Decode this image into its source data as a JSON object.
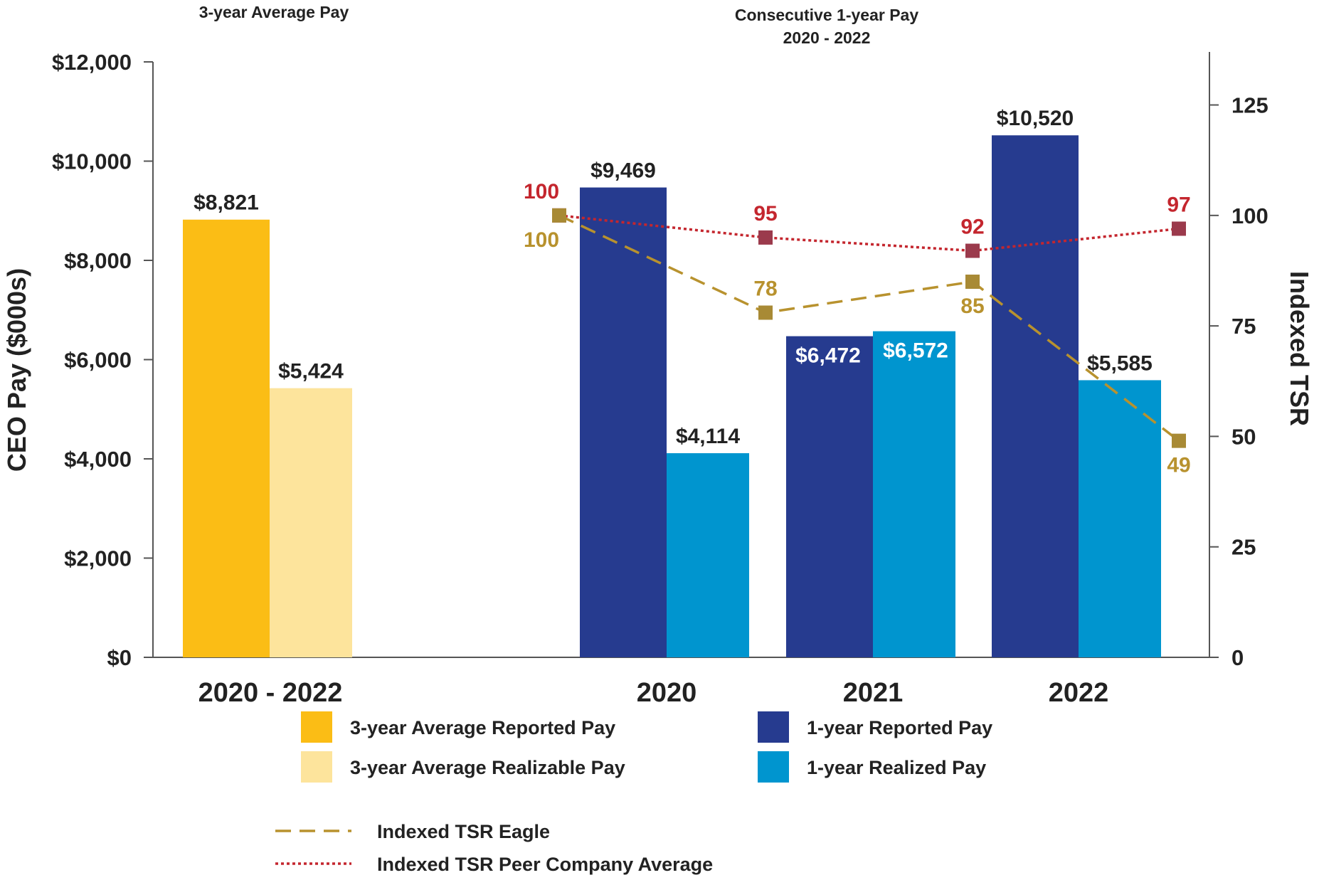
{
  "chart_data": {
    "type": "bar",
    "headings": {
      "left": "3-year Average Pay",
      "right_line1": "Consecutive 1-year Pay",
      "right_line2": "2020 - 2022"
    },
    "ylabel": "CEO Pay ($000s)",
    "y2label": "Indexed TSR",
    "ylim": [
      0,
      12000
    ],
    "y_ticks": [
      0,
      2000,
      4000,
      6000,
      8000,
      10000,
      12000
    ],
    "y_tick_labels": [
      "$0",
      "$2,000",
      "$4,000",
      "$6,000",
      "$8,000",
      "$10,000",
      "$12,000"
    ],
    "y2lim": [
      0,
      137
    ],
    "y2_ticks": [
      0,
      25,
      50,
      75,
      100,
      125
    ],
    "y2_tick_labels": [
      "0",
      "25",
      "50",
      "75",
      "100",
      "125"
    ],
    "groups": [
      {
        "category": "2020 - 2022",
        "bars": [
          {
            "series": "3-year Average Reported Pay",
            "value": 8821,
            "label": "$8,821"
          },
          {
            "series": "3-year Average Realizable Pay",
            "value": 5424,
            "label": "$5,424"
          }
        ]
      },
      {
        "category": "2020",
        "bars": [
          {
            "series": "1-year Reported Pay",
            "value": 9469,
            "label": "$9,469"
          },
          {
            "series": "1-year Realized Pay",
            "value": 4114,
            "label": "$4,114"
          }
        ]
      },
      {
        "category": "2021",
        "bars": [
          {
            "series": "1-year Reported Pay",
            "value": 6472,
            "label": "$6,472"
          },
          {
            "series": "1-year Realized Pay",
            "value": 6572,
            "label": "$6,572"
          }
        ]
      },
      {
        "category": "2022",
        "bars": [
          {
            "series": "1-year Reported Pay",
            "value": 10520,
            "label": "$10,520"
          },
          {
            "series": "1-year Realized Pay",
            "value": 5585,
            "label": "$5,585"
          }
        ]
      }
    ],
    "lines": [
      {
        "name": "Indexed TSR Eagle",
        "style": "dashed",
        "color": "#b8922e",
        "marker_color": "#a88a35",
        "values": [
          100,
          78,
          85,
          49
        ],
        "labels": [
          "100",
          "78",
          "85",
          "49"
        ]
      },
      {
        "name": "Indexed TSR Peer Company Average",
        "style": "dotted",
        "color": "#c4262e",
        "marker_color": "#9b3a4c",
        "values": [
          100,
          95,
          92,
          97
        ],
        "labels": [
          "100",
          "95",
          "92",
          "97"
        ]
      }
    ],
    "legend": [
      {
        "label": "3-year Average Reported Pay",
        "color": "#fbbd15",
        "kind": "swatch"
      },
      {
        "label": "1-year Reported Pay",
        "color": "#263b8f",
        "kind": "swatch"
      },
      {
        "label": "3-year Average Realizable Pay",
        "color": "#fde49c",
        "kind": "swatch"
      },
      {
        "label": "1-year Realized Pay",
        "color": "#0095cf",
        "kind": "swatch"
      },
      {
        "label": "Indexed TSR Eagle",
        "color": "#b8922e",
        "kind": "dashed"
      },
      {
        "label": "Indexed TSR Peer Company Average",
        "color": "#c4262e",
        "kind": "dotted"
      }
    ],
    "colors": {
      "avg_reported": "#fbbd15",
      "avg_realizable": "#fde49c",
      "reported": "#263b8f",
      "realized": "#0095cf",
      "label_dark": "#222222",
      "label_light": "#ffffff"
    }
  }
}
